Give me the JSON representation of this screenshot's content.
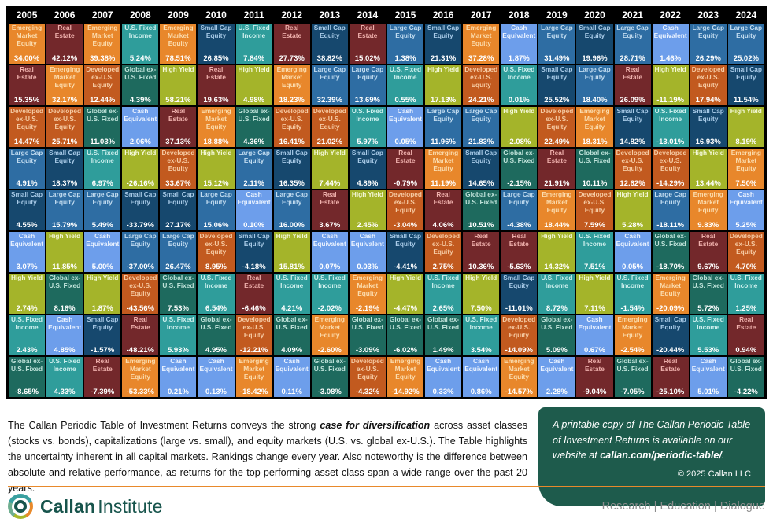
{
  "chart_data": {
    "type": "table",
    "title": "The Callan Periodic Table of Investment Returns",
    "years": [
      "2005",
      "2006",
      "2007",
      "2008",
      "2009",
      "2010",
      "2011",
      "2012",
      "2013",
      "2014",
      "2015",
      "2016",
      "2017",
      "2018",
      "2019",
      "2020",
      "2021",
      "2022",
      "2023",
      "2024"
    ],
    "asset_classes": {
      "em": {
        "label": "Emerging Market Equity",
        "bg": "#E8872B",
        "fg": "#FBDCAE"
      },
      "re": {
        "label": "Real Estate",
        "bg": "#73282B",
        "fg": "#EFB0AC"
      },
      "dev": {
        "label": "Developed ex-U.S. Equity",
        "bg": "#C25A1F",
        "fg": "#F6CBA4"
      },
      "usfi": {
        "label": "U.S. Fixed Income",
        "bg": "#2F9D9B",
        "fg": "#CFF0EE"
      },
      "globalfi": {
        "label": "Global ex-U.S. Fixed",
        "bg": "#1E6A5E",
        "fg": "#BFE3DA"
      },
      "small": {
        "label": "Small Cap Equity",
        "bg": "#16486E",
        "fg": "#A9CBE8"
      },
      "large": {
        "label": "Large Cap Equity",
        "bg": "#2E6DA3",
        "fg": "#C2DCF0"
      },
      "hy": {
        "label": "High Yield",
        "bg": "#A4B42A",
        "fg": "#F4F8D8"
      },
      "cash": {
        "label": "Cash Equivalent",
        "bg": "#6D9EEB",
        "fg": "#EAF2FF"
      }
    },
    "columns": [
      {
        "year": "2005",
        "cells": [
          [
            "em",
            "34.00%"
          ],
          [
            "re",
            "15.35%"
          ],
          [
            "dev",
            "14.47%"
          ],
          [
            "large",
            "4.91%"
          ],
          [
            "small",
            "4.55%"
          ],
          [
            "cash",
            "3.07%"
          ],
          [
            "hy",
            "2.74%"
          ],
          [
            "usfi",
            "2.43%"
          ],
          [
            "globalfi",
            "-8.65%"
          ]
        ]
      },
      {
        "year": "2006",
        "cells": [
          [
            "re",
            "42.12%"
          ],
          [
            "em",
            "32.17%"
          ],
          [
            "dev",
            "25.71%"
          ],
          [
            "small",
            "18.37%"
          ],
          [
            "large",
            "15.79%"
          ],
          [
            "hy",
            "11.85%"
          ],
          [
            "globalfi",
            "8.16%"
          ],
          [
            "cash",
            "4.85%"
          ],
          [
            "usfi",
            "4.33%"
          ]
        ]
      },
      {
        "year": "2007",
        "cells": [
          [
            "em",
            "39.38%"
          ],
          [
            "dev",
            "12.44%"
          ],
          [
            "globalfi",
            "11.03%"
          ],
          [
            "usfi",
            "6.97%"
          ],
          [
            "large",
            "5.49%"
          ],
          [
            "cash",
            "5.00%"
          ],
          [
            "hy",
            "1.87%"
          ],
          [
            "small",
            "-1.57%"
          ],
          [
            "re",
            "-7.39%"
          ]
        ]
      },
      {
        "year": "2008",
        "cells": [
          [
            "usfi",
            "5.24%"
          ],
          [
            "globalfi",
            "4.39%"
          ],
          [
            "cash",
            "2.06%"
          ],
          [
            "hy",
            "-26.16%"
          ],
          [
            "small",
            "-33.79%"
          ],
          [
            "large",
            "-37.00%"
          ],
          [
            "dev",
            "-43.56%"
          ],
          [
            "re",
            "-48.21%"
          ],
          [
            "em",
            "-53.33%"
          ]
        ]
      },
      {
        "year": "2009",
        "cells": [
          [
            "em",
            "78.51%"
          ],
          [
            "hy",
            "58.21%"
          ],
          [
            "re",
            "37.13%"
          ],
          [
            "dev",
            "33.67%"
          ],
          [
            "small",
            "27.17%"
          ],
          [
            "large",
            "26.47%"
          ],
          [
            "globalfi",
            "7.53%"
          ],
          [
            "usfi",
            "5.93%"
          ],
          [
            "cash",
            "0.21%"
          ]
        ]
      },
      {
        "year": "2010",
        "cells": [
          [
            "small",
            "26.85%"
          ],
          [
            "re",
            "19.63%"
          ],
          [
            "em",
            "18.88%"
          ],
          [
            "hy",
            "15.12%"
          ],
          [
            "large",
            "15.06%"
          ],
          [
            "dev",
            "8.95%"
          ],
          [
            "usfi",
            "6.54%"
          ],
          [
            "globalfi",
            "4.95%"
          ],
          [
            "cash",
            "0.13%"
          ]
        ]
      },
      {
        "year": "2011",
        "cells": [
          [
            "usfi",
            "7.84%"
          ],
          [
            "hy",
            "4.98%"
          ],
          [
            "globalfi",
            "4.36%"
          ],
          [
            "large",
            "2.11%"
          ],
          [
            "cash",
            "0.10%"
          ],
          [
            "small",
            "-4.18%"
          ],
          [
            "re",
            "-6.46%"
          ],
          [
            "dev",
            "-12.21%"
          ],
          [
            "em",
            "-18.42%"
          ]
        ]
      },
      {
        "year": "2012",
        "cells": [
          [
            "re",
            "27.73%"
          ],
          [
            "em",
            "18.23%"
          ],
          [
            "dev",
            "16.41%"
          ],
          [
            "small",
            "16.35%"
          ],
          [
            "large",
            "16.00%"
          ],
          [
            "hy",
            "15.81%"
          ],
          [
            "usfi",
            "4.21%"
          ],
          [
            "globalfi",
            "4.09%"
          ],
          [
            "cash",
            "0.11%"
          ]
        ]
      },
      {
        "year": "2013",
        "cells": [
          [
            "small",
            "38.82%"
          ],
          [
            "large",
            "32.39%"
          ],
          [
            "dev",
            "21.02%"
          ],
          [
            "hy",
            "7.44%"
          ],
          [
            "re",
            "3.67%"
          ],
          [
            "cash",
            "0.07%"
          ],
          [
            "usfi",
            "-2.02%"
          ],
          [
            "em",
            "-2.60%"
          ],
          [
            "globalfi",
            "-3.08%"
          ]
        ]
      },
      {
        "year": "2014",
        "cells": [
          [
            "re",
            "15.02%"
          ],
          [
            "large",
            "13.69%"
          ],
          [
            "usfi",
            "5.97%"
          ],
          [
            "small",
            "4.89%"
          ],
          [
            "hy",
            "2.45%"
          ],
          [
            "cash",
            "0.03%"
          ],
          [
            "em",
            "-2.19%"
          ],
          [
            "globalfi",
            "-3.09%"
          ],
          [
            "dev",
            "-4.32%"
          ]
        ]
      },
      {
        "year": "2015",
        "cells": [
          [
            "large",
            "1.38%"
          ],
          [
            "usfi",
            "0.55%"
          ],
          [
            "cash",
            "0.05%"
          ],
          [
            "re",
            "-0.79%"
          ],
          [
            "dev",
            "-3.04%"
          ],
          [
            "small",
            "-4.41%"
          ],
          [
            "hy",
            "-4.47%"
          ],
          [
            "globalfi",
            "-6.02%"
          ],
          [
            "em",
            "-14.92%"
          ]
        ]
      },
      {
        "year": "2016",
        "cells": [
          [
            "small",
            "21.31%"
          ],
          [
            "hy",
            "17.13%"
          ],
          [
            "large",
            "11.96%"
          ],
          [
            "em",
            "11.19%"
          ],
          [
            "re",
            "4.06%"
          ],
          [
            "dev",
            "2.75%"
          ],
          [
            "usfi",
            "2.65%"
          ],
          [
            "globalfi",
            "1.49%"
          ],
          [
            "cash",
            "0.33%"
          ]
        ]
      },
      {
        "year": "2017",
        "cells": [
          [
            "em",
            "37.28%"
          ],
          [
            "dev",
            "24.21%"
          ],
          [
            "large",
            "21.83%"
          ],
          [
            "small",
            "14.65%"
          ],
          [
            "globalfi",
            "10.51%"
          ],
          [
            "re",
            "10.36%"
          ],
          [
            "hy",
            "7.50%"
          ],
          [
            "usfi",
            "3.54%"
          ],
          [
            "cash",
            "0.86%"
          ]
        ]
      },
      {
        "year": "2018",
        "cells": [
          [
            "cash",
            "1.87%"
          ],
          [
            "usfi",
            "0.01%"
          ],
          [
            "hy",
            "-2.08%"
          ],
          [
            "globalfi",
            "-2.15%"
          ],
          [
            "large",
            "-4.38%"
          ],
          [
            "re",
            "-5.63%"
          ],
          [
            "small",
            "-11.01%"
          ],
          [
            "dev",
            "-14.09%"
          ],
          [
            "em",
            "-14.57%"
          ]
        ]
      },
      {
        "year": "2019",
        "cells": [
          [
            "large",
            "31.49%"
          ],
          [
            "small",
            "25.52%"
          ],
          [
            "dev",
            "22.49%"
          ],
          [
            "re",
            "21.91%"
          ],
          [
            "em",
            "18.44%"
          ],
          [
            "hy",
            "14.32%"
          ],
          [
            "usfi",
            "8.72%"
          ],
          [
            "globalfi",
            "5.09%"
          ],
          [
            "cash",
            "2.28%"
          ]
        ]
      },
      {
        "year": "2020",
        "cells": [
          [
            "small",
            "19.96%"
          ],
          [
            "large",
            "18.40%"
          ],
          [
            "em",
            "18.31%"
          ],
          [
            "globalfi",
            "10.11%"
          ],
          [
            "dev",
            "7.59%"
          ],
          [
            "usfi",
            "7.51%"
          ],
          [
            "hy",
            "7.11%"
          ],
          [
            "cash",
            "0.67%"
          ],
          [
            "re",
            "-9.04%"
          ]
        ]
      },
      {
        "year": "2021",
        "cells": [
          [
            "large",
            "28.71%"
          ],
          [
            "re",
            "26.09%"
          ],
          [
            "small",
            "14.82%"
          ],
          [
            "dev",
            "12.62%"
          ],
          [
            "hy",
            "5.28%"
          ],
          [
            "cash",
            "0.05%"
          ],
          [
            "usfi",
            "-1.54%"
          ],
          [
            "em",
            "-2.54%"
          ],
          [
            "globalfi",
            "-7.05%"
          ]
        ]
      },
      {
        "year": "2022",
        "cells": [
          [
            "cash",
            "1.46%"
          ],
          [
            "hy",
            "-11.19%"
          ],
          [
            "usfi",
            "-13.01%"
          ],
          [
            "dev",
            "-14.29%"
          ],
          [
            "large",
            "-18.11%"
          ],
          [
            "globalfi",
            "-18.70%"
          ],
          [
            "em",
            "-20.09%"
          ],
          [
            "small",
            "-20.44%"
          ],
          [
            "re",
            "-25.10%"
          ]
        ]
      },
      {
        "year": "2023",
        "cells": [
          [
            "large",
            "26.29%"
          ],
          [
            "dev",
            "17.94%"
          ],
          [
            "small",
            "16.93%"
          ],
          [
            "hy",
            "13.44%"
          ],
          [
            "em",
            "9.83%"
          ],
          [
            "re",
            "9.67%"
          ],
          [
            "globalfi",
            "5.72%"
          ],
          [
            "usfi",
            "5.53%"
          ],
          [
            "cash",
            "5.01%"
          ]
        ]
      },
      {
        "year": "2024",
        "cells": [
          [
            "large",
            "25.02%"
          ],
          [
            "small",
            "11.54%"
          ],
          [
            "hy",
            "8.19%"
          ],
          [
            "em",
            "7.50%"
          ],
          [
            "cash",
            "5.25%"
          ],
          [
            "dev",
            "4.70%"
          ],
          [
            "usfi",
            "1.25%"
          ],
          [
            "re",
            "0.94%"
          ],
          [
            "globalfi",
            "-4.22%"
          ]
        ]
      }
    ]
  },
  "footer": {
    "paragraph": {
      "before": "The Callan Periodic Table of Investment Returns conveys the strong ",
      "emphasis": "case for diversification",
      "after": " across asset classes (stocks vs. bonds), capitalizations (large vs. small), and equity markets (U.S. vs. global ex-U.S.). The Table highlights the uncertainty inherent in all capital markets. Rankings change every year. Also noteworthy is the difference between absolute and relative performance, as returns for the top-performing asset class span a wide range over the past 20 years."
    },
    "callout": {
      "before": "A printable copy of The Callan Periodic Table of Investment Returns is available on our website at ",
      "link": "callan.com/periodic-table/",
      "after": ".",
      "copyright": "© 2025 Callan LLC",
      "bg": "#1E5B4C"
    },
    "brand": {
      "name_bold": "Callan",
      "name_light": "Institute",
      "tagline": "Research | Education | Dialogue",
      "accent": "#E8892B"
    }
  }
}
